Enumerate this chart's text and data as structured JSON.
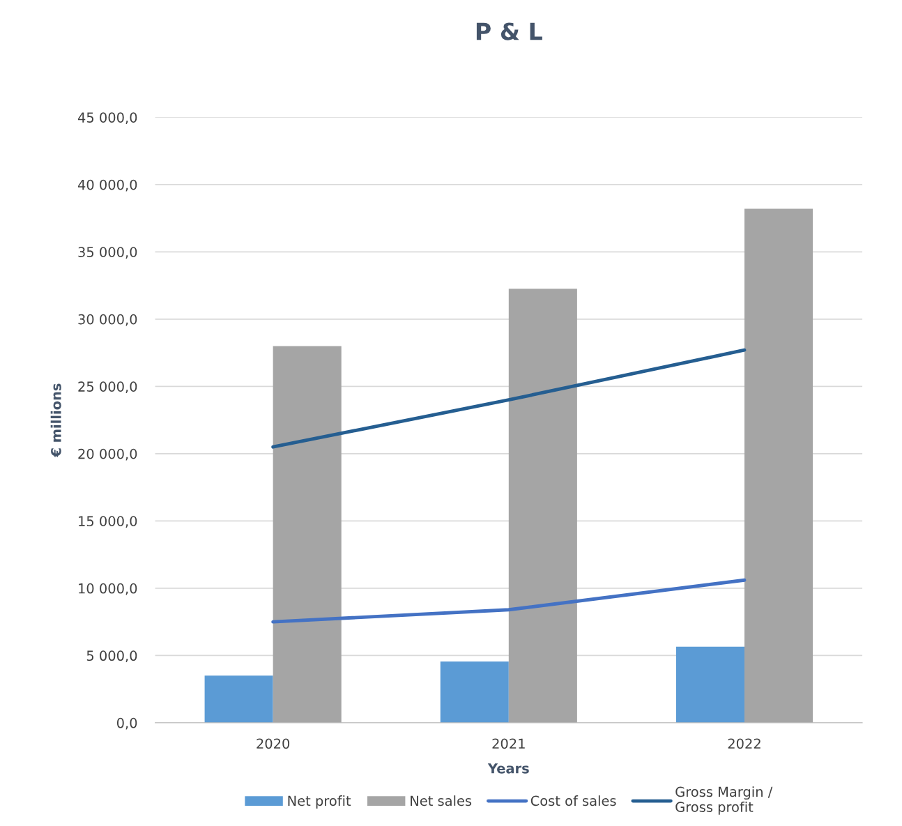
{
  "chart_data": {
    "type": "bar",
    "title": "P & L",
    "xlabel": "Years",
    "ylabel": "€ millions",
    "categories": [
      "2020",
      "2021",
      "2022"
    ],
    "series": [
      {
        "name": "Net profit",
        "color": "#5b9bd5",
        "values": [
          3500,
          4550,
          5650
        ]
      },
      {
        "name": "Net sales",
        "color": "#a5a5a5",
        "values": [
          28000,
          32250,
          38200
        ]
      },
      {
        "name": "Cost of sales",
        "type": "line",
        "color": "#4472c4",
        "values": [
          7500,
          8400,
          10600
        ]
      },
      {
        "name": "Gross Margin /\nGross profit",
        "type": "line",
        "color": "#255e91",
        "values": [
          20500,
          24000,
          27700
        ]
      }
    ],
    "ylim": [
      0,
      45000
    ],
    "yticks": [
      {
        "value": 0,
        "label": "0,0"
      },
      {
        "value": 5000,
        "label": "5 000,0"
      },
      {
        "value": 10000,
        "label": "10 000,0"
      },
      {
        "value": 15000,
        "label": "15 000,0"
      },
      {
        "value": 20000,
        "label": "20 000,0"
      },
      {
        "value": 25000,
        "label": "25 000,0"
      },
      {
        "value": 30000,
        "label": "30 000,0"
      },
      {
        "value": 35000,
        "label": "35 000,0"
      },
      {
        "value": 40000,
        "label": "40 000,0"
      },
      {
        "value": 45000,
        "label": "45 000,0"
      }
    ],
    "grid": "y",
    "legend": "bottom",
    "line_style": "solid",
    "marker": "none"
  }
}
